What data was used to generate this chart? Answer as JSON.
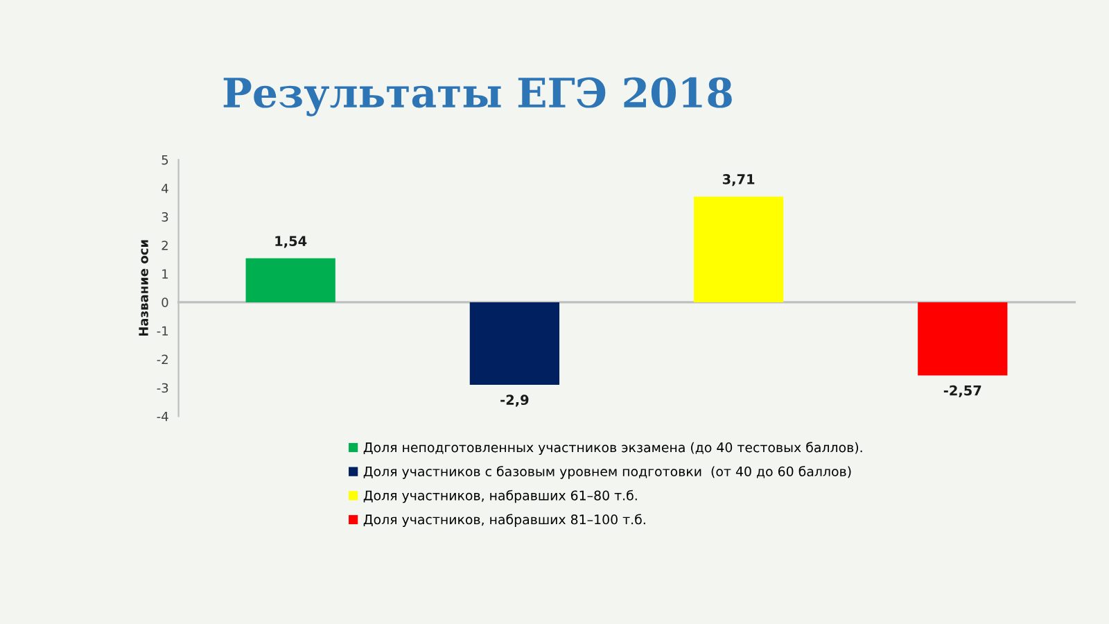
{
  "chart_data": {
    "type": "bar",
    "title": "Результаты ЕГЭ 2018",
    "ylabel": "Название оси",
    "categories": [
      null,
      null,
      null,
      null
    ],
    "series": [
      {
        "name": "Доля неподготовленных участников экзамена (до 40 тестовых баллов).",
        "color": "#00b050",
        "values": [
          1.54,
          null,
          null,
          null
        ],
        "value_labels": [
          "1,54",
          null,
          null,
          null
        ]
      },
      {
        "name": "Доля участников с базовым уровнем подготовки  (от 40 до 60 баллов)",
        "color": "#002060",
        "values": [
          null,
          -2.9,
          null,
          null
        ],
        "value_labels": [
          null,
          "-2,9",
          null,
          null
        ]
      },
      {
        "name": "Доля участников, набравших 61–80 т.б.",
        "color": "#ffff00",
        "values": [
          null,
          null,
          3.71,
          null
        ],
        "value_labels": [
          null,
          null,
          "3,71",
          null
        ]
      },
      {
        "name": "Доля участников, набравших 81–100 т.б.",
        "color": "#ff0000",
        "values": [
          null,
          null,
          null,
          -2.57
        ],
        "value_labels": [
          null,
          null,
          null,
          "-2,57"
        ]
      }
    ],
    "ylim": [
      -4,
      5
    ],
    "yticks": [
      -4,
      -3,
      -2,
      -1,
      0,
      1,
      2,
      3,
      4,
      5
    ],
    "legend": "bottom"
  }
}
